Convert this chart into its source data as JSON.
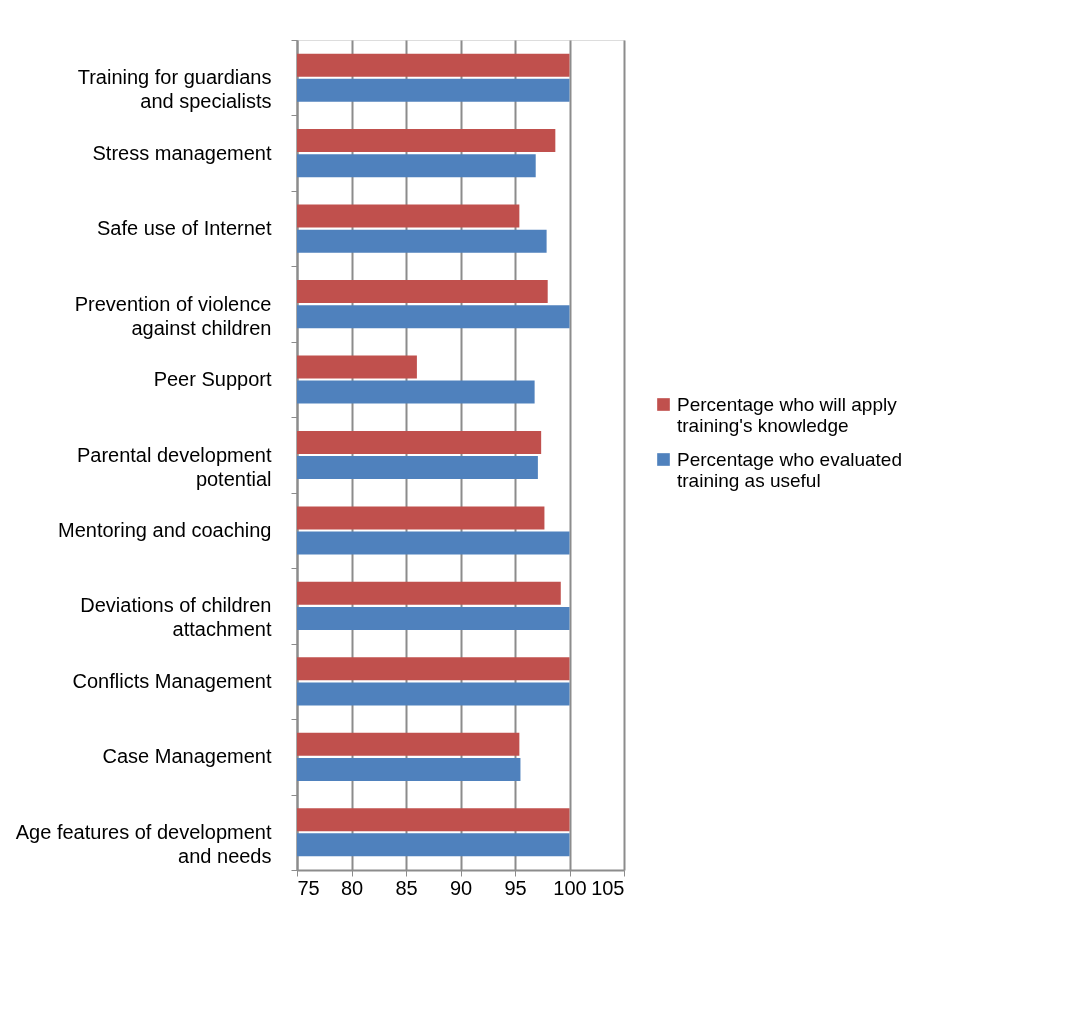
{
  "chart_data": {
    "type": "bar",
    "orientation": "horizontal",
    "categories": [
      "Training for guardians and specialists",
      "Stress management",
      "Safe use of Internet",
      "Prevention of violence against children",
      "Peer Support",
      "Parental development potential",
      "Mentoring and coaching",
      "Deviations of children attachment",
      "Conflicts Management",
      "Case Management",
      "Age features of development and needs"
    ],
    "series": [
      {
        "name": "Percentage who will apply training's knowledge",
        "color": "#c0504d",
        "values": [
          100,
          98.7,
          95.4,
          98.0,
          86.0,
          97.4,
          97.7,
          99.2,
          100,
          95.4,
          100
        ]
      },
      {
        "name": "Percentage who evaluated training as useful",
        "color": "#4f81bd",
        "values": [
          100,
          96.9,
          97.9,
          100,
          96.8,
          97.1,
          100,
          100,
          100,
          95.5,
          100
        ]
      }
    ],
    "xlim": [
      75,
      105
    ],
    "xticks": [
      75,
      80,
      85,
      90,
      95,
      100,
      105
    ],
    "grid": "x",
    "legend": "right"
  }
}
